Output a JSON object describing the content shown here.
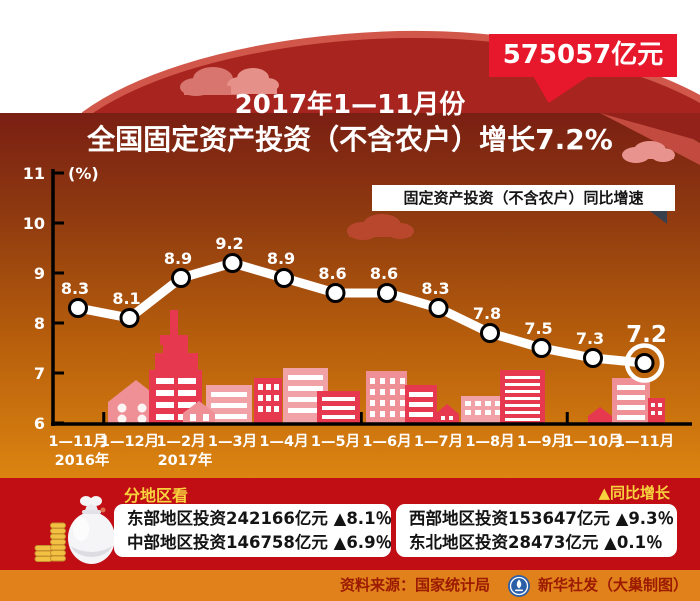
{
  "header": {
    "badge_label": "575057亿元",
    "title_line1": "2017年1—11月份",
    "title_line2": "全国固定资产投资（不含农户）增长7.2%"
  },
  "chart_data": {
    "type": "line",
    "title": "2017年1—11月份全国固定资产投资（不含农户）增长7.2%",
    "legend": "固定资产投资（不含农户）同比增速",
    "unit_label": "(%)",
    "xlabel": "",
    "ylabel": "%",
    "ylim": [
      6,
      11
    ],
    "yticks": [
      6,
      7,
      8,
      9,
      10,
      11
    ],
    "grid": false,
    "legend_position": "top-right",
    "categories": [
      "1—11月",
      "1—12月",
      "1—2月",
      "1—3月",
      "1—4月",
      "1—5月",
      "1—6月",
      "1—7月",
      "1—8月",
      "1—9月",
      "1—10月",
      "1—11月"
    ],
    "category_year_labels": [
      {
        "index": 0,
        "label": "2016年"
      },
      {
        "index": 2,
        "label": "2017年"
      }
    ],
    "values": [
      8.3,
      8.1,
      8.9,
      9.2,
      8.9,
      8.6,
      8.6,
      8.3,
      7.8,
      7.5,
      7.3,
      7.2
    ],
    "highlight_last": true
  },
  "regions": {
    "section_label": "分地区看",
    "growth_note": "▲同比增长",
    "boxes": [
      {
        "lines": [
          "东部地区投资242166亿元  ▲8.1％",
          "中部地区投资146758亿元  ▲6.9％"
        ]
      },
      {
        "lines": [
          "西部地区投资153647亿元  ▲9.3％",
          "东北地区投资28473亿元  ▲0.1％"
        ]
      }
    ]
  },
  "footer": {
    "source": "资料来源：国家统计局",
    "credit": "新华社发（大巢制图）",
    "logo": "xinhua-logo"
  },
  "colors": {
    "badge_red": "#e7182c",
    "dome_red": "#a7241f",
    "dome_rim": "#d0574a",
    "band_red": "#c10d14",
    "footer_orange": "#e0811b",
    "accent_yellow": "#f8d33e",
    "series_line": "#ffffff"
  }
}
